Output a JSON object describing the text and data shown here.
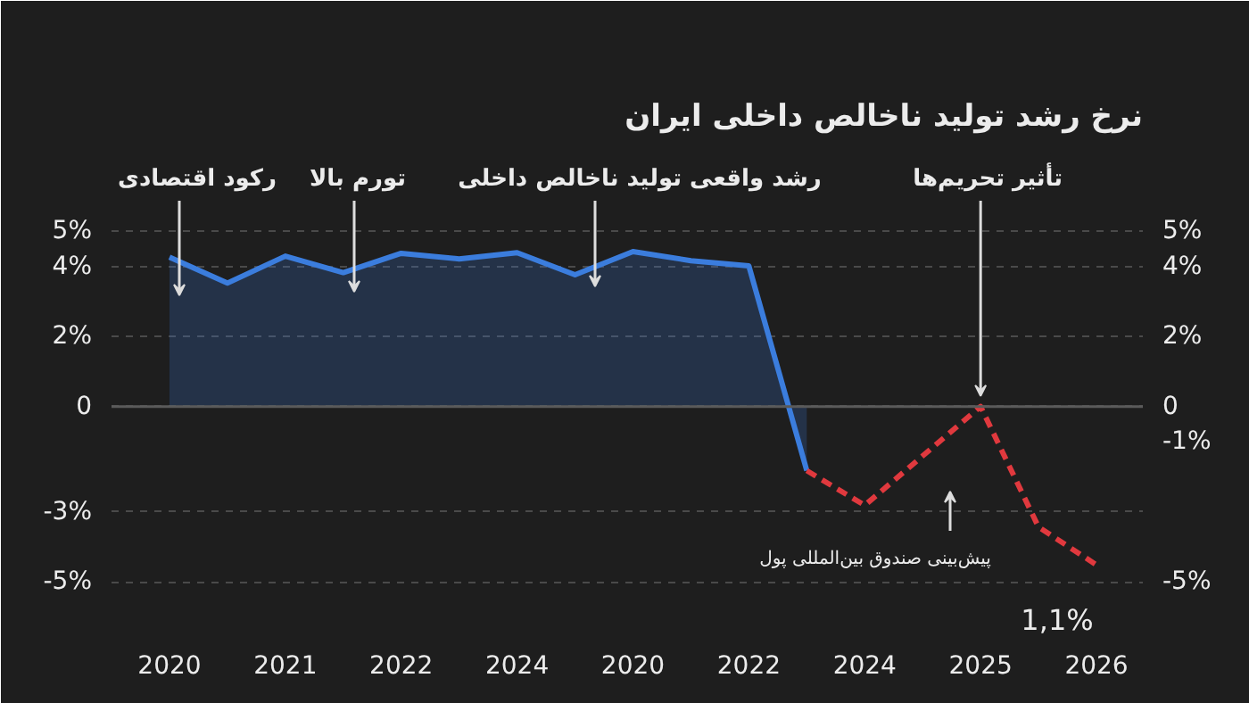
{
  "chart_data": {
    "type": "area",
    "title": "نرخ رشد تولید ناخالص داخلی ایران",
    "categories": [
      "2020",
      null,
      "2021",
      null,
      "2022",
      null,
      "2024",
      null,
      "2020",
      null,
      "2022",
      null,
      "2024",
      null,
      "2025",
      null,
      "2026"
    ],
    "ylim": [
      -6.5,
      7.5
    ],
    "yticks": [
      {
        "value": 5,
        "label": "5%"
      },
      {
        "value": 4,
        "label": "4%"
      },
      {
        "value": 2,
        "label": "2%"
      },
      0,
      {
        "value": -3,
        "label": "-3%"
      },
      {
        "value": -5,
        "label": "-5%"
      }
    ],
    "y2lim": [
      -6.5,
      7.5
    ],
    "y2ticks": [
      {
        "value": 5,
        "label": "5%"
      },
      {
        "value": 4,
        "label": "4%"
      },
      {
        "value": 2,
        "label": "2%"
      },
      0,
      {
        "value": -1,
        "label": "-1%"
      },
      {
        "value": -5,
        "label": "-5%"
      }
    ],
    "grid": "y",
    "line_style": "solid",
    "series": [
      {
        "color": "#3b7ddd",
        "values": [
          4.26,
          3.52,
          4.29,
          3.82,
          4.37,
          4.21,
          4.39,
          3.76,
          4.42,
          4.16,
          4.01,
          -1.83,
          null,
          null,
          null,
          null,
          null
        ]
      },
      {
        "type": "line",
        "color": "#e0393e",
        "line_style": "dashed",
        "values": [
          null,
          null,
          null,
          null,
          null,
          null,
          null,
          null,
          null,
          null,
          null,
          -1.83,
          -2.82,
          -1.41,
          0,
          -3.44,
          -4.52
        ]
      }
    ],
    "ref_lines": [
      {
        "axis": "y",
        "value": 0,
        "color": "#5a5a5a",
        "line_style": "solid"
      }
    ],
    "annotations": [
      "رکود اقتصادی",
      "تورم بالا",
      "رشد واقعی تولید ناخالص داخلی",
      {
        "text": "تأثیر تحریم‌ها",
        "x": "2025",
        "y": 0
      },
      "پیش‌بینی صندوق بین‌المللی پول",
      "1,1%"
    ]
  }
}
